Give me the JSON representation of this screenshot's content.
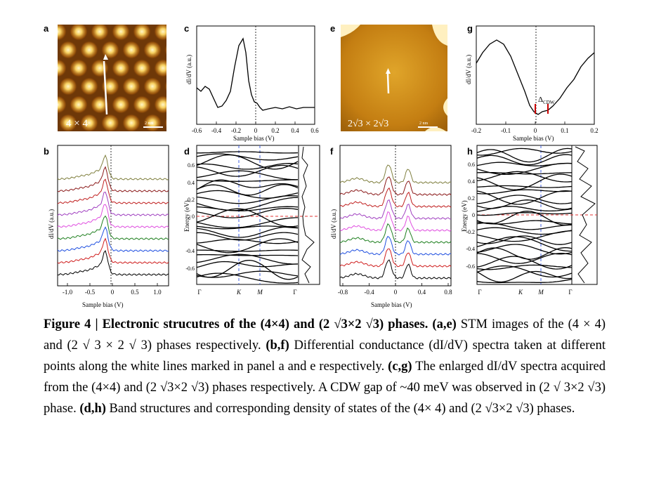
{
  "panels": {
    "a": {
      "letter": "a",
      "label": "4 × 4",
      "scale": "2 nm"
    },
    "b": {
      "letter": "b",
      "ylabel": "dI/dV (a.u.)",
      "xlabel": "Sample bias (V)",
      "xticks": [
        "-1.0",
        "-0.5",
        "0",
        "0.5",
        "1.0"
      ]
    },
    "c": {
      "letter": "c",
      "ylabel": "dI/dV (a.u.)",
      "xlabel": "Sample bias (V)",
      "xticks": [
        "-0.6",
        "-0.4",
        "-0.2",
        "0",
        "0.2",
        "0.4",
        "0.6"
      ]
    },
    "d": {
      "letter": "d",
      "ylabel": "Energy (eV)",
      "yticks": [
        "0.6",
        "0.4",
        "0.2",
        "0",
        "-0.4",
        "-0.6"
      ],
      "xticks": [
        "Γ",
        "K",
        "M",
        "Γ"
      ]
    },
    "e": {
      "letter": "e",
      "label": "2√3 × 2√3",
      "scale": "2 nm"
    },
    "f": {
      "letter": "f",
      "ylabel": "dI/dV (a.u.)",
      "xlabel": "Sample bias (V)",
      "xticks": [
        "-0.8",
        "-0.4",
        "0",
        "0.4",
        "0.8"
      ]
    },
    "g": {
      "letter": "g",
      "ylabel": "dI/dV (a.u.)",
      "xlabel": "Sample bias (V)",
      "xticks": [
        "-0.2",
        "-0.1",
        "0",
        "0.1",
        "0.2"
      ],
      "annotation": "Δ",
      "annotation_sub": "CDW"
    },
    "h": {
      "letter": "h",
      "ylabel": "Energy (eV)",
      "yticks": [
        "0.6",
        "0.4",
        "0.2",
        "0",
        "-0.2",
        "-0.4",
        "-0.6"
      ],
      "xticks": [
        "Γ",
        "K",
        "M",
        "Γ"
      ]
    }
  },
  "spectra_colors": [
    "#808040",
    "#8b1a1a",
    "#c02020",
    "#a040c0",
    "#e050e0",
    "#208020",
    "#2050e0",
    "#d02020",
    "#000000"
  ],
  "caption": {
    "title": "Figure 4 | Electronic strucutres of the (4×4) and (2 √3×2 √3) phases.",
    "lines": [
      {
        "b": "(a,e)",
        "t": " STM images of the (4 × 4) and (2 √ 3 × 2 √ 3) phases respectively. "
      },
      {
        "b": "(b,f)",
        "t": " Differential conductance (dI/dV) spectra taken at different points along the white lines marked in panel a and e respectively. "
      },
      {
        "b": "(c,g)",
        "t": " The enlarged dI/dV spectra acquired from the (4×4) and (2 √3×2 √3) phases respectively. A CDW gap of ~40 meV was observed in (2 √ 3×2 √3) phase. "
      },
      {
        "b": "(d,h)",
        "t": " Band structures and corresponding density of states of the (4× 4) and (2 √3×2 √3) phases."
      }
    ]
  }
}
